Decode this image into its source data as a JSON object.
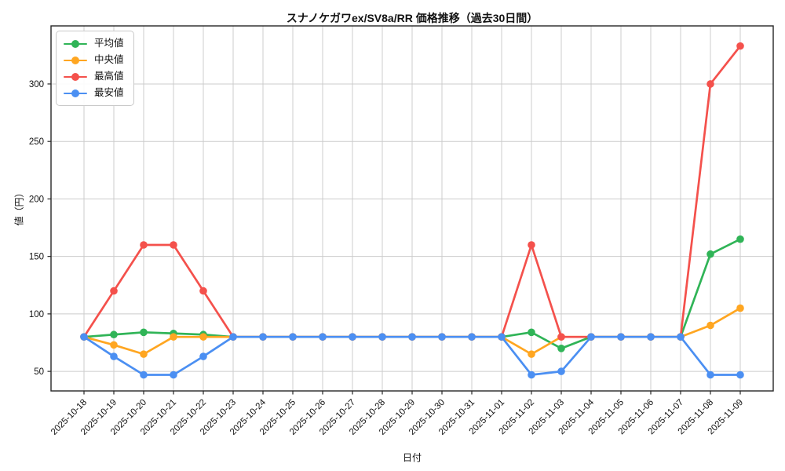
{
  "chart_data": {
    "type": "line",
    "title": "スナノケガワex/SV8a/RR 価格推移（過去30日間）",
    "xlabel": "日付",
    "ylabel": "値（円）",
    "grid": true,
    "legend_position": "upper-left",
    "ylim": [
      33,
      350.5
    ],
    "y_ticks": [
      50,
      100,
      150,
      200,
      250,
      300
    ],
    "x": [
      "2025-10-18",
      "2025-10-19",
      "2025-10-20",
      "2025-10-21",
      "2025-10-22",
      "2025-10-23",
      "2025-10-24",
      "2025-10-25",
      "2025-10-26",
      "2025-10-27",
      "2025-10-28",
      "2025-10-29",
      "2025-10-30",
      "2025-10-31",
      "2025-11-01",
      "2025-11-02",
      "2025-11-03",
      "2025-11-04",
      "2025-11-05",
      "2025-11-06",
      "2025-11-07",
      "2025-11-08",
      "2025-11-09"
    ],
    "series": [
      {
        "name": "平均値",
        "color": "#30b457",
        "values": [
          80,
          82,
          84,
          83,
          82,
          80,
          80,
          80,
          80,
          80,
          80,
          80,
          80,
          80,
          80,
          84,
          70,
          80,
          80,
          80,
          80,
          152,
          165
        ]
      },
      {
        "name": "中央値",
        "color": "#ffa621",
        "values": [
          80,
          73,
          65,
          80,
          80,
          80,
          80,
          80,
          80,
          80,
          80,
          80,
          80,
          80,
          80,
          65,
          80,
          80,
          80,
          80,
          80,
          90,
          105
        ]
      },
      {
        "name": "最高値",
        "color": "#f4514c",
        "values": [
          80,
          120,
          160,
          160,
          120,
          80,
          80,
          80,
          80,
          80,
          80,
          80,
          80,
          80,
          80,
          160,
          80,
          80,
          80,
          80,
          80,
          300,
          333
        ]
      },
      {
        "name": "最安値",
        "color": "#4b8ff2",
        "values": [
          80,
          63,
          47,
          47,
          63,
          80,
          80,
          80,
          80,
          80,
          80,
          80,
          80,
          80,
          80,
          47,
          50,
          80,
          80,
          80,
          80,
          47,
          47
        ]
      }
    ],
    "colors": {
      "grid": "#cccccc",
      "spine": "#262626",
      "tick_text": "#111111",
      "background": "#ffffff"
    }
  }
}
